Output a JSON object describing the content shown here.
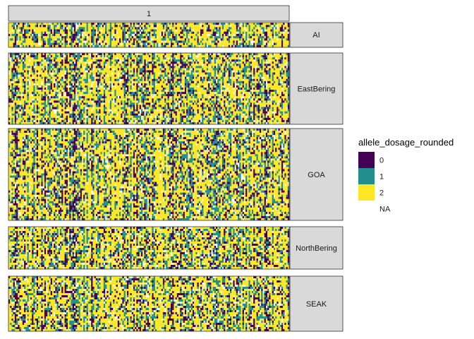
{
  "chart_data": {
    "type": "heatmap",
    "title": "",
    "xlabel": "",
    "ylabel": "",
    "column_facets": [
      "1"
    ],
    "row_facets": [
      "AI",
      "EastBering",
      "GOA",
      "NorthBering",
      "SEAK"
    ],
    "legend": {
      "title": "allele_dosage_rounded",
      "position": "right",
      "entries": [
        {
          "label": "0",
          "color": "#440154"
        },
        {
          "label": "1",
          "color": "#21908C"
        },
        {
          "label": "2",
          "color": "#FDE725"
        },
        {
          "label": "NA",
          "color": "#FFFFFF"
        }
      ]
    },
    "grid": false
  },
  "colors": {
    "strip_fill": "#d9d9d9",
    "strip_border": "#333333",
    "na": "#FFFFFF"
  }
}
